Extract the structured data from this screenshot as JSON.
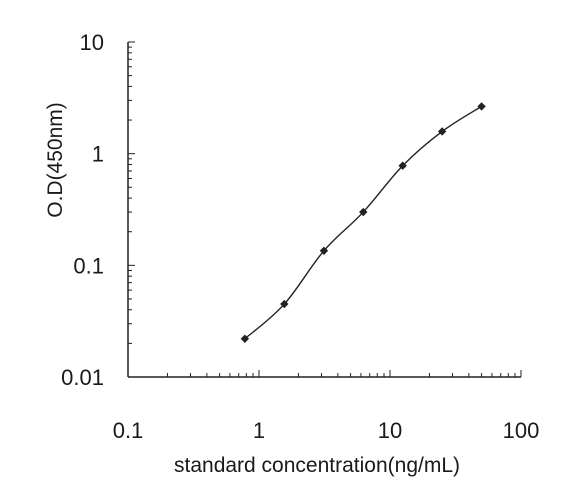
{
  "chart_data": {
    "type": "line",
    "title": "",
    "xlabel": "standard concentration(ng/mL)",
    "ylabel": "O.D(450nm)",
    "x_scale": "log",
    "y_scale": "log",
    "xlim": [
      0.1,
      100
    ],
    "ylim": [
      0.01,
      10
    ],
    "x_ticks": [
      "0.1",
      "1",
      "10",
      "100"
    ],
    "y_ticks": [
      "0.01",
      "0.1",
      "1",
      "10"
    ],
    "grid": false,
    "legend": "none",
    "series": [
      {
        "x": [
          0.78,
          1.56,
          3.13,
          6.25,
          12.5,
          25,
          50
        ],
        "y": [
          0.022,
          0.045,
          0.135,
          0.3,
          0.78,
          1.58,
          2.65
        ],
        "color": "#222222",
        "marker": "diamond"
      }
    ]
  }
}
